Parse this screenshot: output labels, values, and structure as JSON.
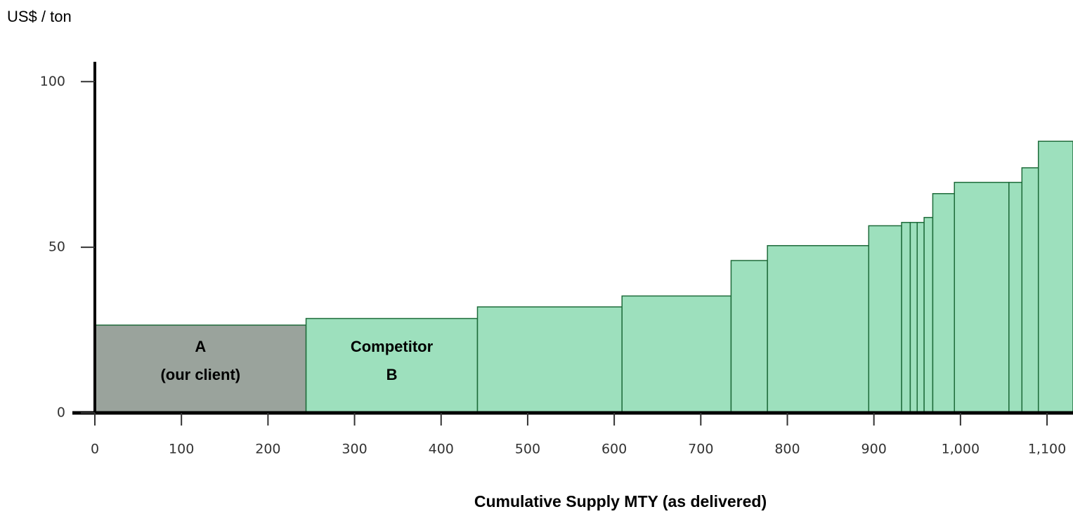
{
  "chart_data": {
    "type": "cost_curve",
    "y_label": "US$ / ton",
    "x_label": "Cumulative Supply MTY (as delivered)",
    "edges": [
      0,
      244,
      442,
      609,
      735,
      777,
      894,
      932,
      942,
      950,
      958,
      968,
      993,
      1056,
      1071,
      1090,
      1130
    ],
    "values": [
      26.5,
      28.5,
      32,
      35.3,
      46,
      50.5,
      56.5,
      57.5,
      57.5,
      57.5,
      59,
      66.2,
      69.6,
      69.6,
      74,
      82
    ],
    "categories": [
      [
        "A",
        "(our client)"
      ],
      [
        "Competitor",
        "B"
      ],
      null,
      null,
      null,
      null,
      null,
      null,
      null,
      null,
      null,
      null,
      null,
      null,
      null,
      null
    ],
    "colors": [
      "#9aa39c",
      "#9de0bd",
      "#9de0bd",
      "#9de0bd",
      "#9de0bd",
      "#9de0bd",
      "#9de0bd",
      "#9de0bd",
      "#9de0bd",
      "#9de0bd",
      "#9de0bd",
      "#9de0bd",
      "#9de0bd",
      "#9de0bd",
      "#9de0bd",
      "#9de0bd"
    ],
    "xlim": [
      0,
      1130
    ],
    "ylim": [
      0,
      106
    ],
    "xticks": [
      0,
      100,
      200,
      300,
      400,
      500,
      600,
      700,
      800,
      900,
      {
        "value": 1000,
        "label": "1,000"
      },
      {
        "value": 1100,
        "label": "1,100"
      }
    ],
    "yticks": [
      0,
      50,
      100
    ]
  }
}
